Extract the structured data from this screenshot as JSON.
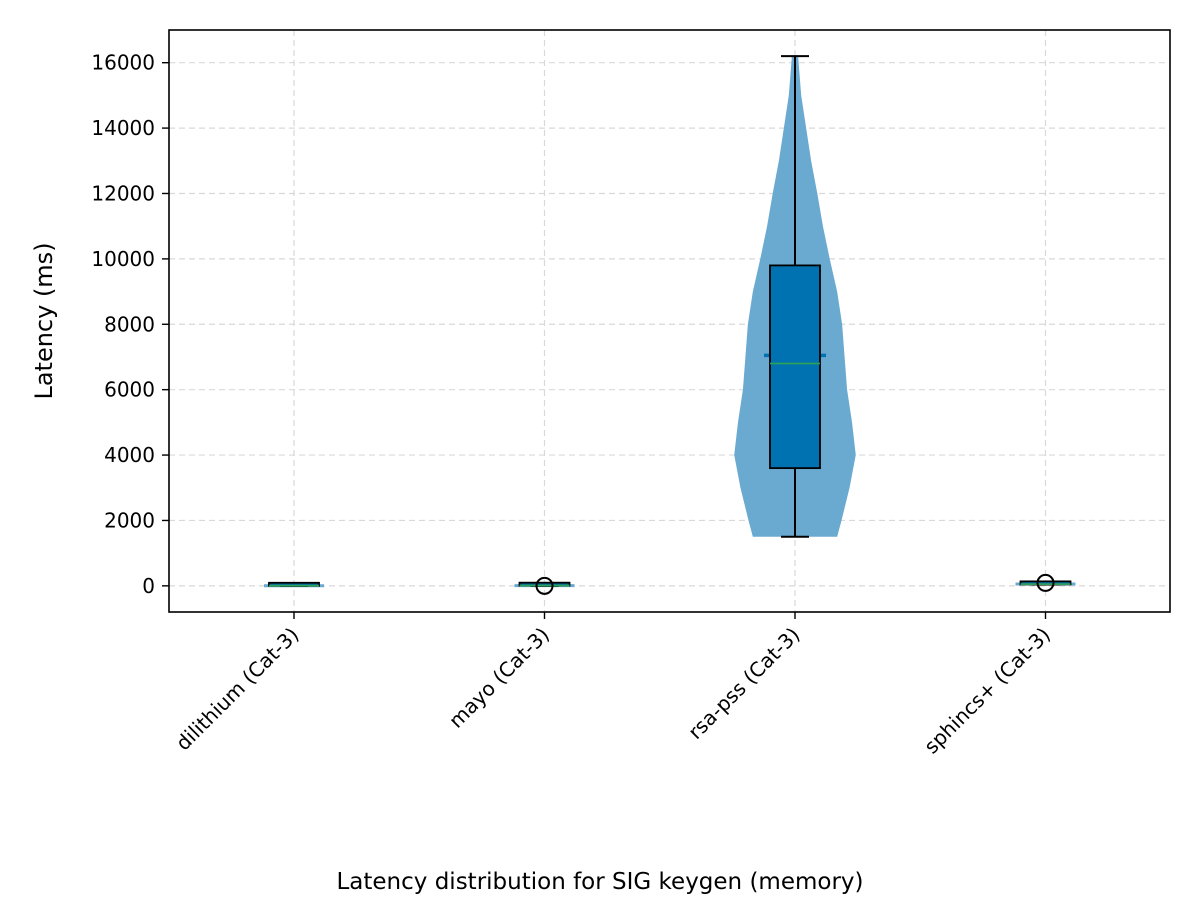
{
  "chart_data": {
    "type": "violin",
    "title": "",
    "xlabel": "",
    "ylabel": "Latency (ms)",
    "caption": "Latency distribution for SIG keygen (memory)",
    "ylim": [
      -800,
      17000
    ],
    "yticks": [
      0,
      2000,
      4000,
      6000,
      8000,
      10000,
      12000,
      14000,
      16000
    ],
    "grid": true,
    "categories": [
      "dilithium (Cat-3)",
      "mayo (Cat-3)",
      "rsa-pss (Cat-3)",
      "sphincs+ (Cat-3)"
    ],
    "violin_color": "#6aaad0",
    "box_color": "#0072b2",
    "median_color": "#2ca05a",
    "series": [
      {
        "category": "dilithium (Cat-3)",
        "min": 0,
        "q1": 2,
        "median": 4,
        "q3": 6,
        "max": 10,
        "mean": 4,
        "outliers": [],
        "density": []
      },
      {
        "category": "mayo (Cat-3)",
        "min": 0,
        "q1": 5,
        "median": 8,
        "q3": 12,
        "max": 20,
        "mean": 8,
        "outliers": [
          0
        ],
        "density": []
      },
      {
        "category": "rsa-pss (Cat-3)",
        "min": 1500,
        "q1": 3600,
        "median": 6800,
        "q3": 9800,
        "max": 16200,
        "mean": 7050,
        "outliers": [],
        "density": [
          [
            1500,
            0.68
          ],
          [
            2000,
            0.75
          ],
          [
            3000,
            0.88
          ],
          [
            4000,
            0.98
          ],
          [
            5000,
            0.92
          ],
          [
            6000,
            0.84
          ],
          [
            7000,
            0.8
          ],
          [
            8000,
            0.76
          ],
          [
            9000,
            0.68
          ],
          [
            10000,
            0.56
          ],
          [
            11000,
            0.45
          ],
          [
            12000,
            0.36
          ],
          [
            13000,
            0.26
          ],
          [
            14000,
            0.18
          ],
          [
            15000,
            0.1
          ],
          [
            16200,
            0.05
          ]
        ]
      },
      {
        "category": "sphincs+ (Cat-3)",
        "min": 40,
        "q1": 45,
        "median": 52,
        "q3": 60,
        "max": 75,
        "mean": 55,
        "outliers": [
          90
        ],
        "density": []
      }
    ]
  }
}
